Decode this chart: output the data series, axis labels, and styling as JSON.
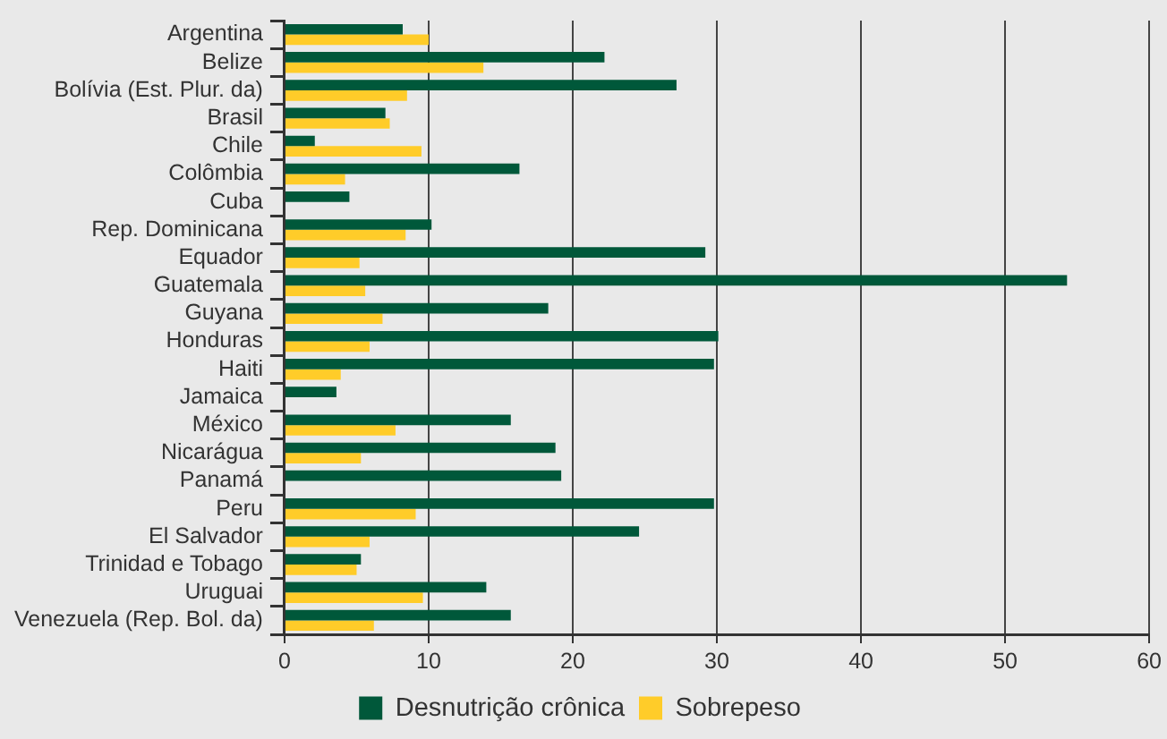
{
  "chart_data": {
    "type": "bar",
    "orientation": "horizontal",
    "categories": [
      "Argentina",
      "Belize",
      "Bolívia (Est. Plur. da)",
      "Brasil",
      "Chile",
      "Colômbia",
      "Cuba",
      "Rep. Dominicana",
      "Equador",
      "Guatemala",
      "Guyana",
      "Honduras",
      "Haiti",
      "Jamaica",
      "México",
      "Nicarágua",
      "Panamá",
      "Peru",
      "El Salvador",
      "Trinidad e Tobago",
      "Uruguai",
      "Venezuela (Rep. Bol. da)"
    ],
    "series": [
      {
        "name": "Desnutrição crônica",
        "color": "#00583a",
        "values": [
          8.2,
          22.2,
          27.2,
          7.0,
          2.1,
          16.3,
          4.5,
          10.2,
          29.2,
          54.3,
          18.3,
          30.1,
          29.8,
          3.6,
          15.7,
          18.8,
          19.2,
          29.8,
          24.6,
          5.3,
          14.0,
          15.7
        ]
      },
      {
        "name": "Sobrepeso",
        "color": "#ffcc29",
        "values": [
          10.0,
          13.8,
          8.5,
          7.3,
          9.5,
          4.2,
          null,
          8.4,
          5.2,
          5.6,
          6.8,
          5.9,
          3.9,
          null,
          7.7,
          5.3,
          null,
          9.1,
          5.9,
          5.0,
          9.6,
          6.2
        ]
      }
    ],
    "xlim": [
      0,
      60
    ],
    "xticks": [
      0,
      10,
      20,
      30,
      40,
      50,
      60
    ],
    "grid": "x",
    "legend": "bottom"
  }
}
